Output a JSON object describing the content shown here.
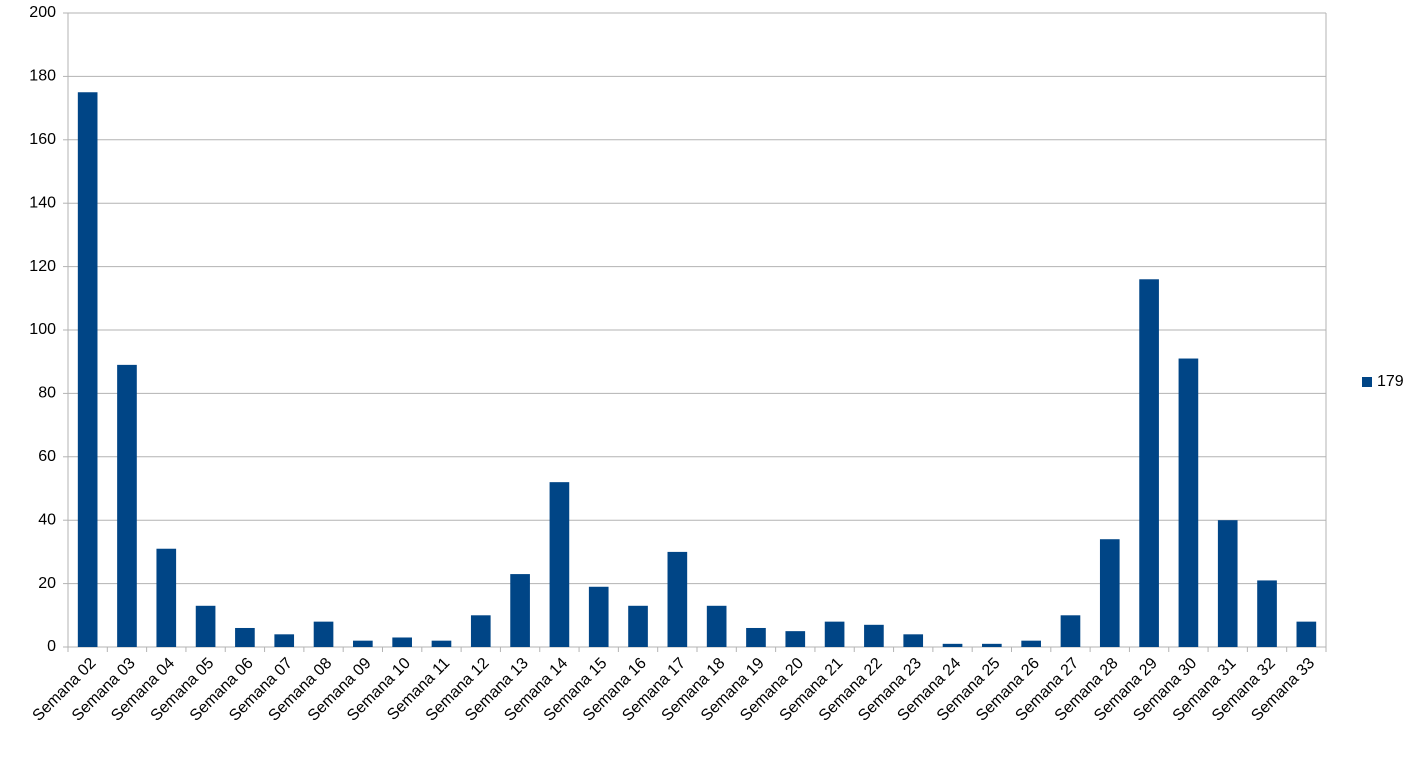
{
  "chart_data": {
    "type": "bar",
    "categories": [
      "Semana 02",
      "Semana 03",
      "Semana 04",
      "Semana 05",
      "Semana 06",
      "Semana 07",
      "Semana 08",
      "Semana 09",
      "Semana 10",
      "Semana 11",
      "Semana 12",
      "Semana 13",
      "Semana 14",
      "Semana 15",
      "Semana 16",
      "Semana 17",
      "Semana 18",
      "Semana 19",
      "Semana 20",
      "Semana 21",
      "Semana 22",
      "Semana 23",
      "Semana 24",
      "Semana 25",
      "Semana 26",
      "Semana 27",
      "Semana 28",
      "Semana 29",
      "Semana 30",
      "Semana 31",
      "Semana 32",
      "Semana 33"
    ],
    "series": [
      {
        "name": "179",
        "color": "#004586",
        "values": [
          175,
          89,
          31,
          13,
          6,
          4,
          8,
          2,
          3,
          2,
          10,
          23,
          52,
          19,
          13,
          30,
          13,
          6,
          5,
          8,
          7,
          4,
          1,
          1,
          2,
          10,
          34,
          116,
          91,
          40,
          21,
          8
        ]
      }
    ],
    "ylim": [
      0,
      200
    ],
    "yticks": [
      0,
      20,
      40,
      60,
      80,
      100,
      120,
      140,
      160,
      180,
      200
    ],
    "grid": true,
    "legend": "right"
  }
}
